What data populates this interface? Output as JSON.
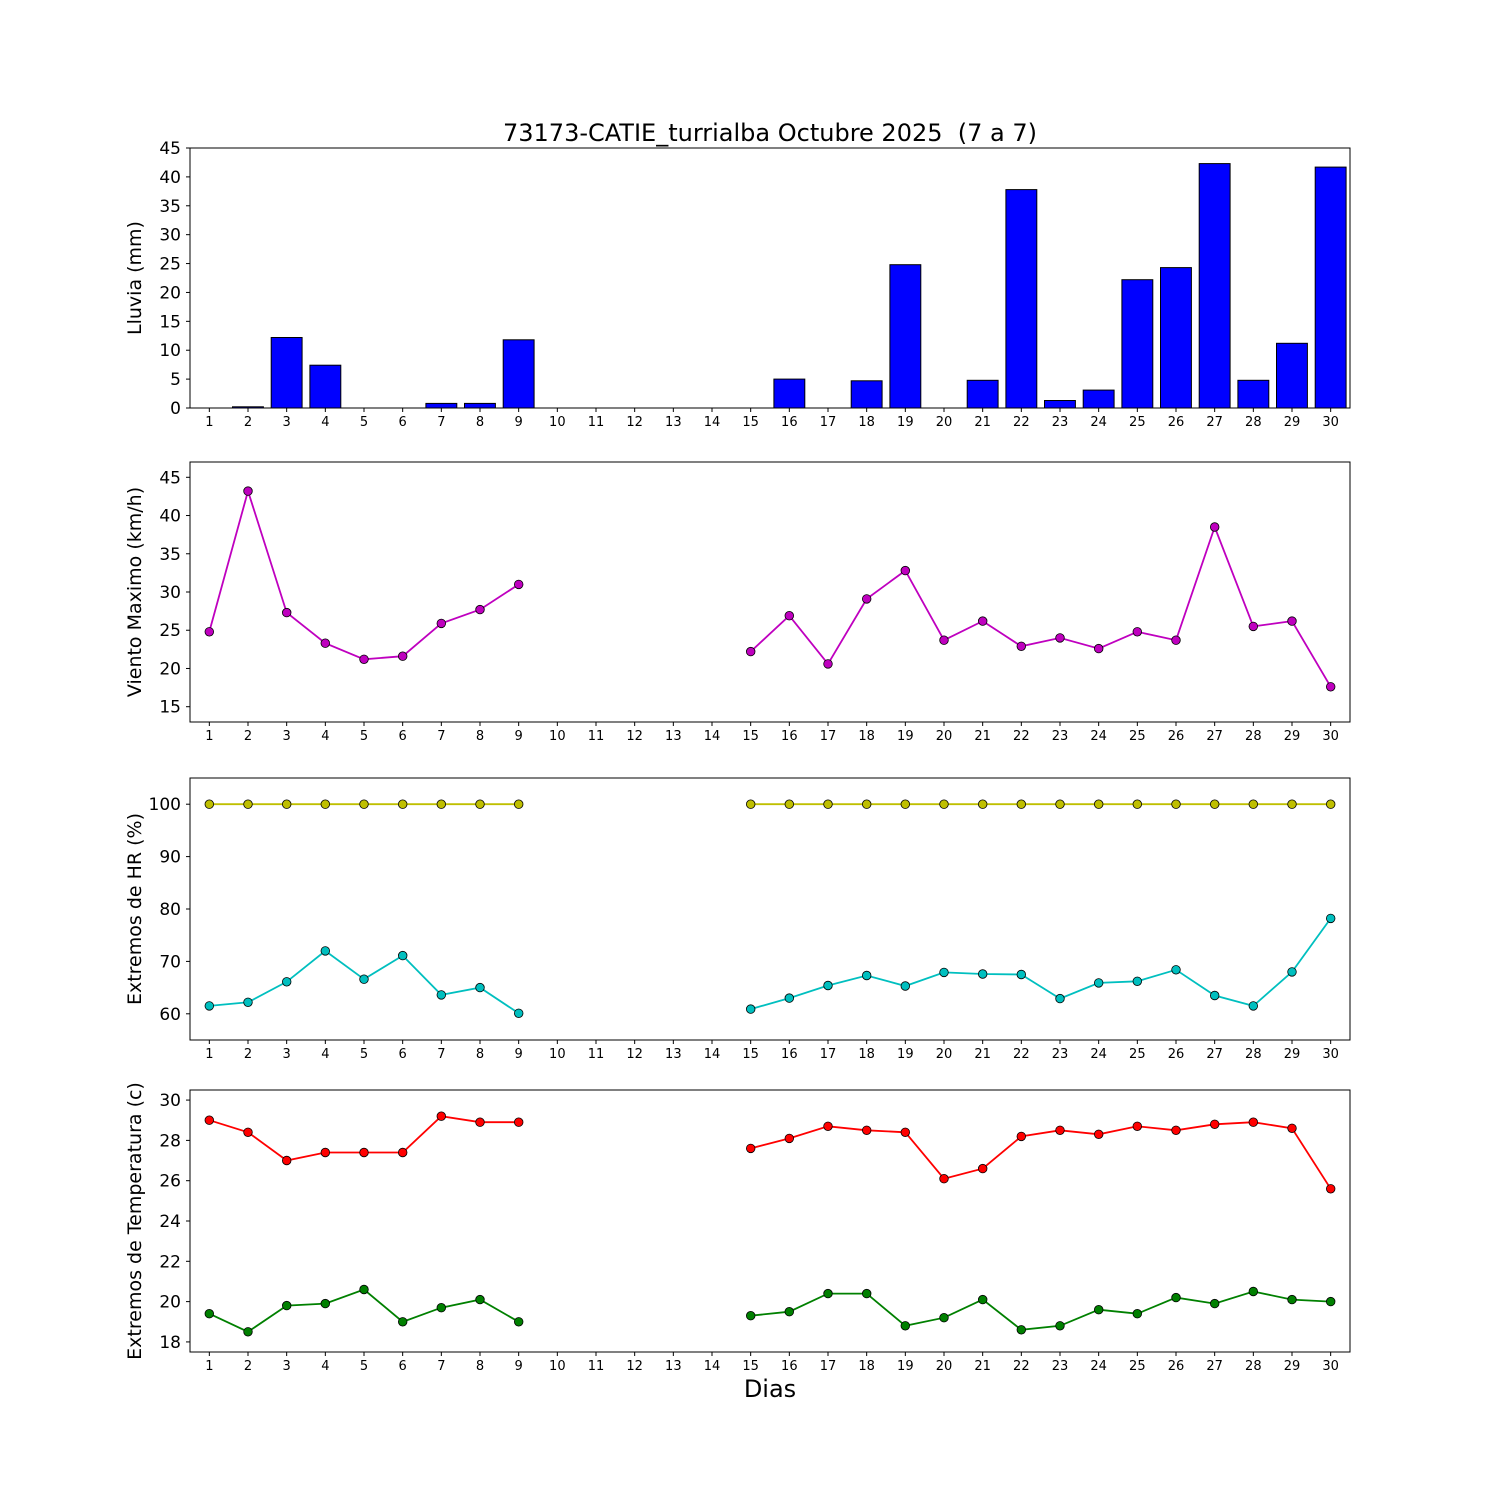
{
  "title": "73173-CATIE_turrialba Octubre 2025  (7 a 7)",
  "xlabel": "Dias",
  "chart_data": [
    {
      "type": "bar",
      "title": "",
      "ylabel": "Lluvia (mm)",
      "ylim": [
        0,
        45
      ],
      "yticks": [
        0,
        5,
        10,
        15,
        20,
        25,
        30,
        35,
        40,
        45
      ],
      "xlim": [
        0.5,
        30.5
      ],
      "grid": false,
      "legend": "none",
      "x": [
        1,
        2,
        3,
        4,
        5,
        6,
        7,
        8,
        9,
        10,
        11,
        12,
        13,
        14,
        15,
        16,
        17,
        18,
        19,
        20,
        21,
        22,
        23,
        24,
        25,
        26,
        27,
        28,
        29,
        30
      ],
      "series": [
        {
          "name": "lluvia",
          "color": "#0000ff",
          "values": [
            0,
            0.2,
            12.2,
            7.4,
            0,
            0,
            0.8,
            0.8,
            11.8,
            0,
            0,
            0,
            0,
            0,
            0,
            5.0,
            0,
            4.7,
            24.8,
            0,
            4.8,
            37.8,
            1.3,
            3.1,
            22.2,
            24.3,
            42.3,
            4.8,
            11.2,
            41.7
          ]
        }
      ]
    },
    {
      "type": "line",
      "title": "",
      "ylabel": "Viento Maximo (km/h)",
      "ylim": [
        13,
        47
      ],
      "yticks": [
        15,
        20,
        25,
        30,
        35,
        40,
        45
      ],
      "xlim": [
        0.5,
        30.5
      ],
      "grid": false,
      "legend": "none",
      "x": [
        1,
        2,
        3,
        4,
        5,
        6,
        7,
        8,
        9,
        10,
        11,
        12,
        13,
        14,
        15,
        16,
        17,
        18,
        19,
        20,
        21,
        22,
        23,
        24,
        25,
        26,
        27,
        28,
        29,
        30
      ],
      "series": [
        {
          "name": "viento-maximo",
          "color": "#bf00bf",
          "values": [
            24.8,
            43.2,
            27.3,
            23.3,
            21.2,
            21.6,
            25.9,
            27.7,
            31.0,
            null,
            null,
            null,
            null,
            null,
            22.2,
            26.9,
            20.6,
            29.1,
            32.8,
            23.7,
            26.2,
            22.9,
            24.0,
            22.6,
            24.8,
            23.7,
            38.5,
            25.5,
            26.2,
            17.6
          ]
        }
      ]
    },
    {
      "type": "line",
      "title": "",
      "ylabel": "Extremos de HR (%)",
      "ylim": [
        55,
        105
      ],
      "yticks": [
        60,
        70,
        80,
        90,
        100
      ],
      "xlim": [
        0.5,
        30.5
      ],
      "grid": false,
      "legend": "none",
      "x": [
        1,
        2,
        3,
        4,
        5,
        6,
        7,
        8,
        9,
        10,
        11,
        12,
        13,
        14,
        15,
        16,
        17,
        18,
        19,
        20,
        21,
        22,
        23,
        24,
        25,
        26,
        27,
        28,
        29,
        30
      ],
      "series": [
        {
          "name": "hr-maxima",
          "color": "#bfbf00",
          "values": [
            100,
            100,
            100,
            100,
            100,
            100,
            100,
            100,
            100,
            null,
            null,
            null,
            null,
            null,
            100,
            100,
            100,
            100,
            100,
            100,
            100,
            100,
            100,
            100,
            100,
            100,
            100,
            100,
            100,
            100
          ]
        },
        {
          "name": "hr-minima",
          "color": "#00bfbf",
          "values": [
            61.5,
            62.2,
            66.1,
            72.0,
            66.6,
            71.1,
            63.6,
            65.0,
            60.1,
            null,
            null,
            null,
            null,
            null,
            60.9,
            63.0,
            65.4,
            67.3,
            65.3,
            67.9,
            67.6,
            67.5,
            62.9,
            65.9,
            66.2,
            68.4,
            63.5,
            61.5,
            68.0,
            78.2
          ]
        }
      ]
    },
    {
      "type": "line",
      "title": "",
      "ylabel": "Extremos de Temperatura (c)",
      "ylim": [
        17.5,
        30.5
      ],
      "yticks": [
        18,
        20,
        22,
        24,
        26,
        28,
        30
      ],
      "xlim": [
        0.5,
        30.5
      ],
      "grid": false,
      "legend": "none",
      "x": [
        1,
        2,
        3,
        4,
        5,
        6,
        7,
        8,
        9,
        10,
        11,
        12,
        13,
        14,
        15,
        16,
        17,
        18,
        19,
        20,
        21,
        22,
        23,
        24,
        25,
        26,
        27,
        28,
        29,
        30
      ],
      "series": [
        {
          "name": "temperatura-maxima",
          "color": "#ff0000",
          "values": [
            29.0,
            28.4,
            27.0,
            27.4,
            27.4,
            27.4,
            29.2,
            28.9,
            28.9,
            null,
            null,
            null,
            null,
            null,
            27.6,
            28.1,
            28.7,
            28.5,
            28.4,
            26.1,
            26.6,
            28.2,
            28.5,
            28.3,
            28.7,
            28.5,
            28.8,
            28.9,
            28.6,
            25.6
          ]
        },
        {
          "name": "temperatura-minima",
          "color": "#008000",
          "values": [
            19.4,
            18.5,
            19.8,
            19.9,
            20.6,
            19.0,
            19.7,
            20.1,
            19.0,
            null,
            null,
            null,
            null,
            null,
            19.3,
            19.5,
            20.4,
            20.4,
            18.8,
            19.2,
            20.1,
            18.6,
            18.8,
            19.6,
            19.4,
            20.2,
            19.9,
            20.5,
            20.1,
            20.0
          ]
        }
      ]
    }
  ]
}
